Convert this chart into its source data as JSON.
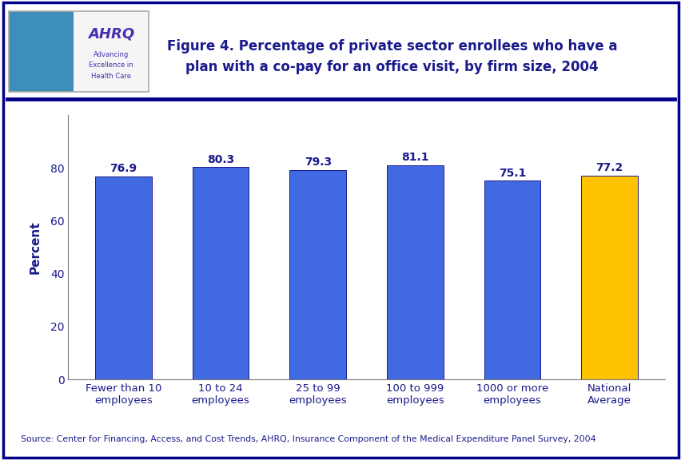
{
  "categories": [
    "Fewer than 10\nemployees",
    "10 to 24\nemployees",
    "25 to 99\nemployees",
    "100 to 999\nemployees",
    "1000 or more\nemployees",
    "National\nAverage"
  ],
  "values": [
    76.9,
    80.3,
    79.3,
    81.1,
    75.1,
    77.2
  ],
  "bar_colors": [
    "#4169E1",
    "#4169E1",
    "#4169E1",
    "#4169E1",
    "#4169E1",
    "#FFC200"
  ],
  "title_line1": "Figure 4. Percentage of private sector enrollees who have a",
  "title_line2": "plan with a co-pay for an office visit, by firm size, 2004",
  "ylabel": "Percent",
  "ylim": [
    0,
    100
  ],
  "yticks": [
    0,
    20,
    40,
    60,
    80
  ],
  "source_text": "Source: Center for Financing, Access, and Cost Trends, AHRQ, Insurance Component of the Medical Expenditure Panel Survey, 2004",
  "title_color": "#1a1a8c",
  "bar_edge_color": "#1a1a8c",
  "axis_label_color": "#1a1a8c",
  "tick_label_color": "#1a1a8c",
  "value_label_color": "#1a1a8c",
  "background_color": "#ffffff",
  "plot_bg_color": "#ffffff",
  "header_line_color": "#00008B",
  "source_color": "#1a1a8c",
  "border_color": "#00008B",
  "logo_bg_teal": "#3d8eb9",
  "logo_bg_white": "#f5f5f5",
  "logo_text_color": "#4a2db0"
}
